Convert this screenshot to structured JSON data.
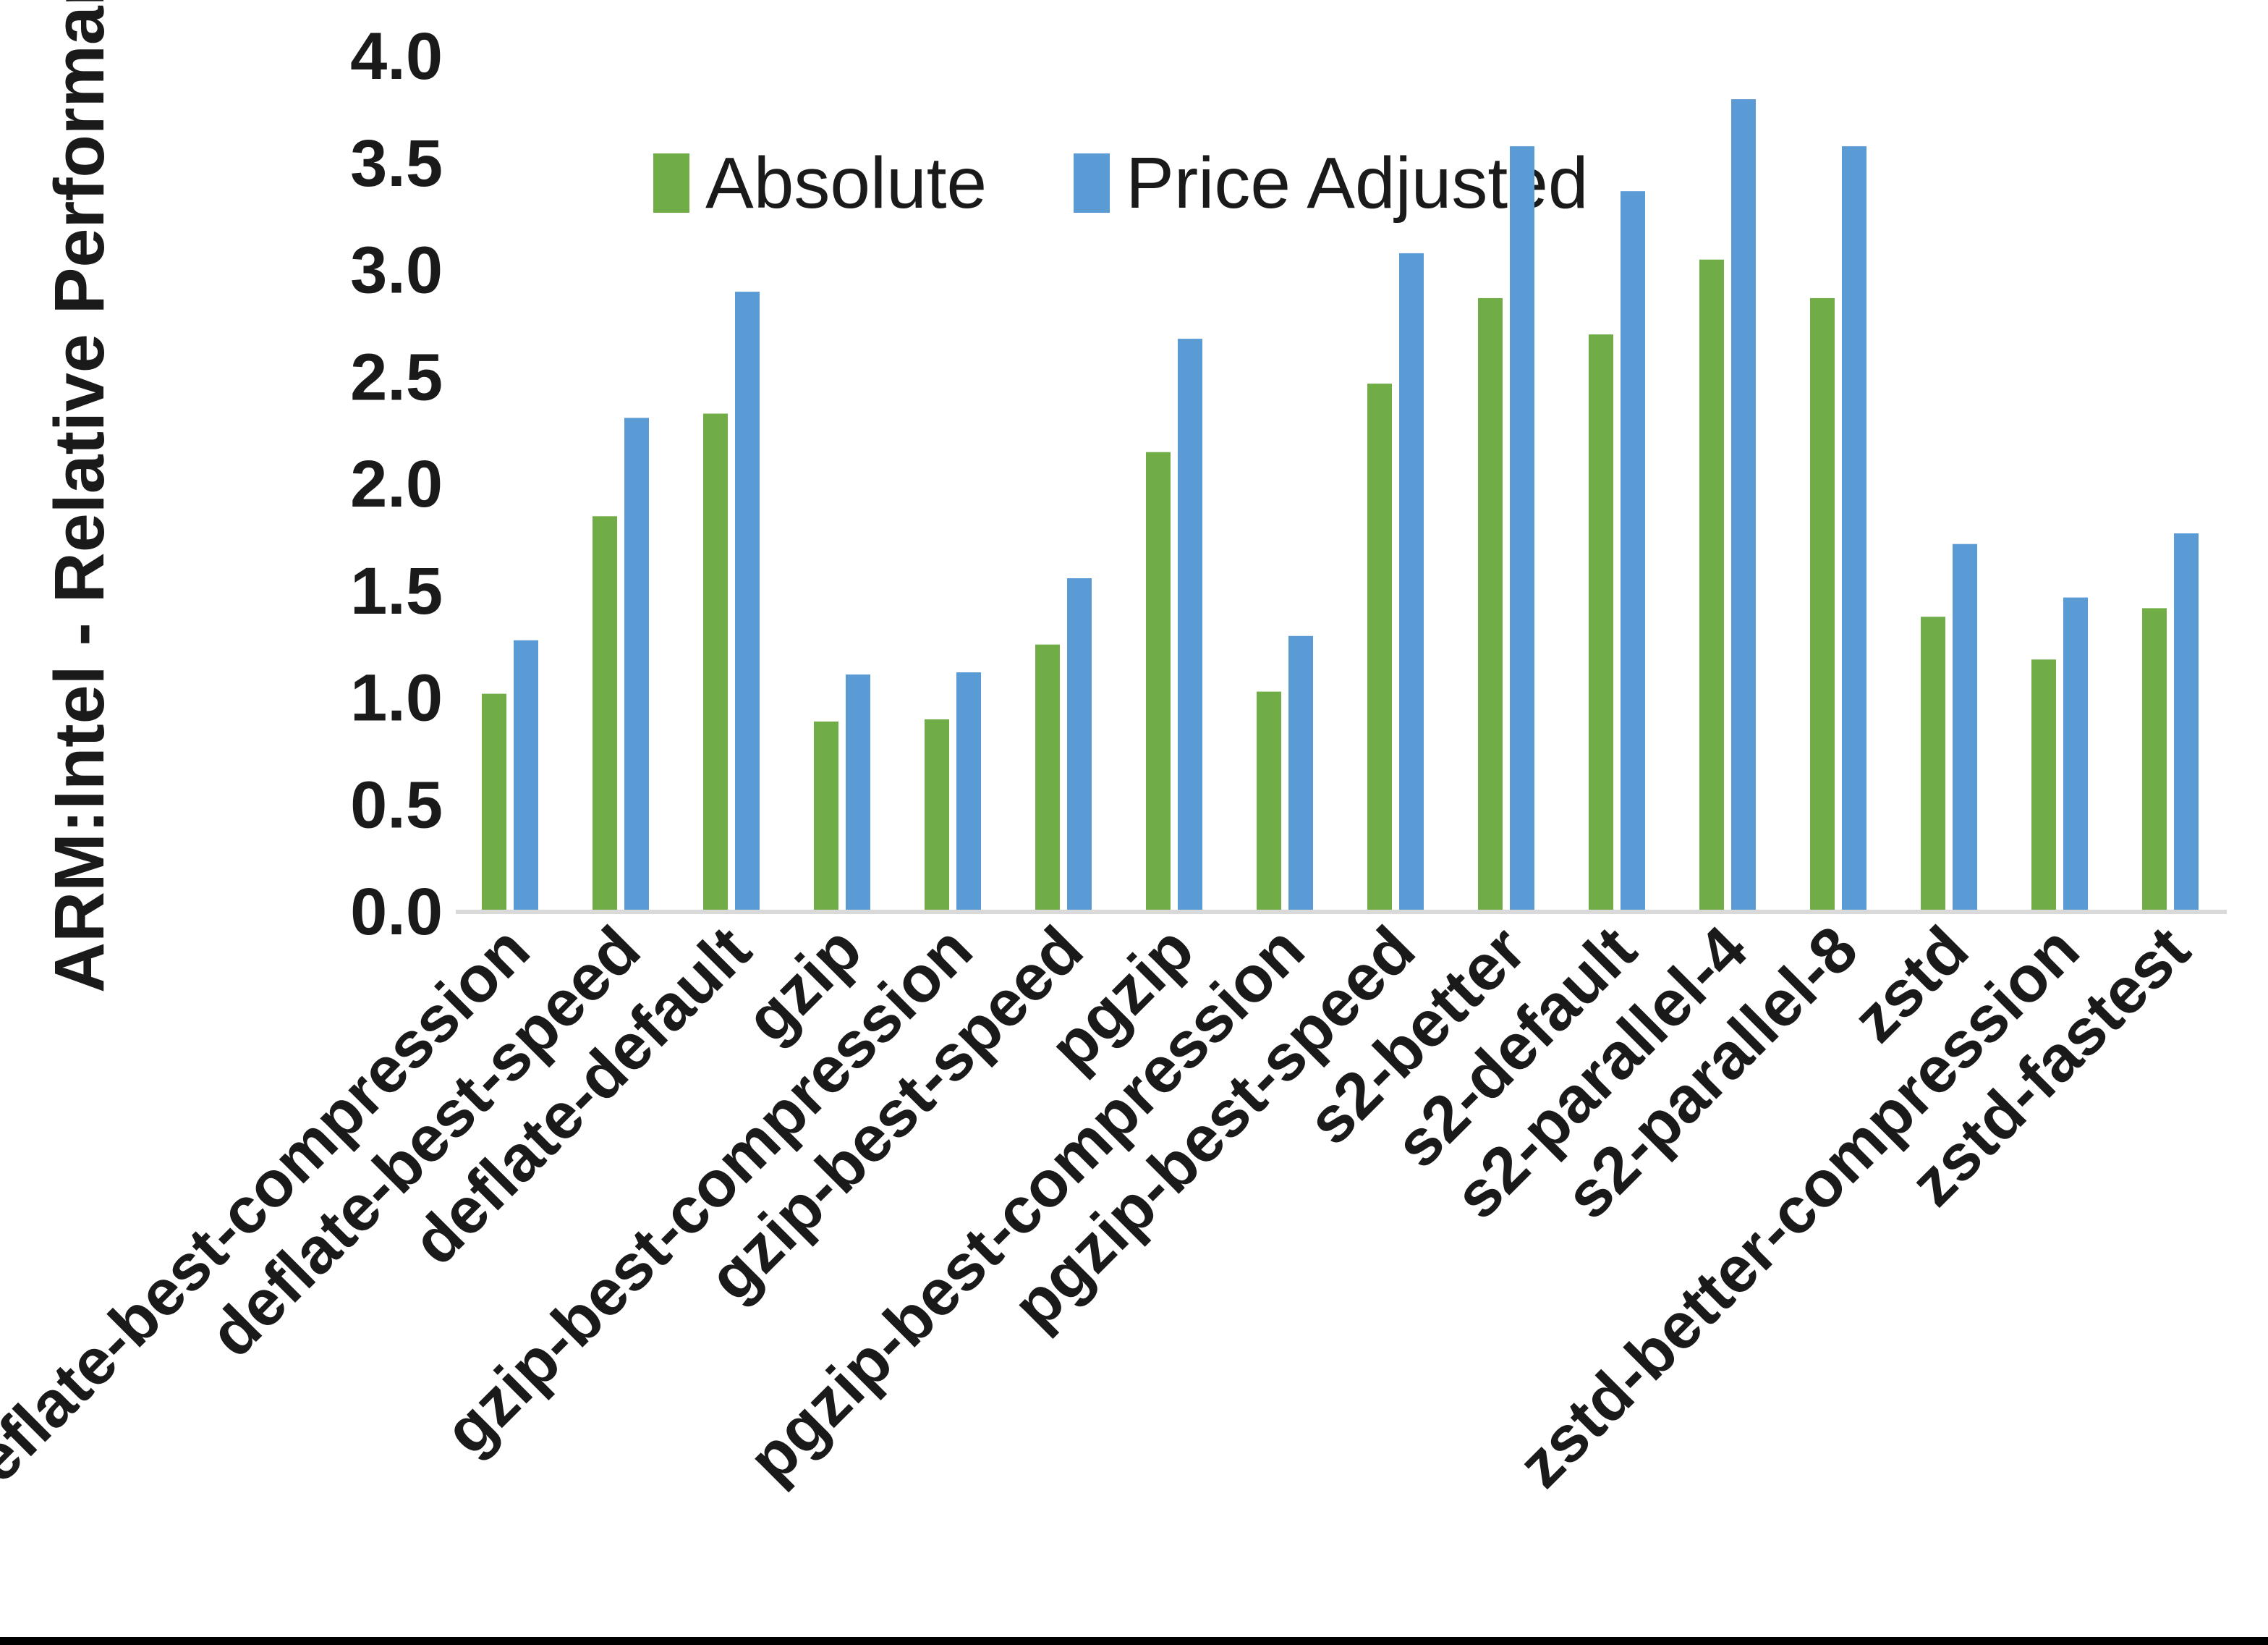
{
  "chart_data": {
    "type": "bar",
    "title": "",
    "ylabel": "ARM:Intel - Relative Performance",
    "xlabel": "",
    "ylim": [
      0.0,
      4.0
    ],
    "ytick_step": 0.5,
    "ytick_labels": [
      "0.0",
      "0.5",
      "1.0",
      "1.5",
      "2.0",
      "2.5",
      "3.0",
      "3.5",
      "4.0"
    ],
    "grid": false,
    "legend_position": "top-center-inside",
    "categories": [
      "deflate-best-compression",
      "deflate-best-speed",
      "deflate-default",
      "gzip",
      "gzip-best-compression",
      "gzip-best-speed",
      "pgzip",
      "pgzip-best-compression",
      "pgzip-best-speed",
      "s2-better",
      "s2-default",
      "s2-parallel-4",
      "s2-parallel-8",
      "zstd",
      "zstd-better-compression",
      "zstd-fastest"
    ],
    "series": [
      {
        "name": "Absolute",
        "color": "#70AD47",
        "values": [
          1.02,
          1.85,
          2.33,
          0.89,
          0.9,
          1.25,
          2.15,
          1.03,
          2.47,
          2.87,
          2.7,
          3.05,
          2.87,
          1.38,
          1.18,
          1.42
        ]
      },
      {
        "name": "Price Adjusted",
        "color": "#5B9BD5",
        "values": [
          1.27,
          2.31,
          2.9,
          1.11,
          1.12,
          1.56,
          2.68,
          1.29,
          3.08,
          3.58,
          3.37,
          3.8,
          3.58,
          1.72,
          1.47,
          1.77
        ]
      }
    ],
    "axis_line_color": "#D9D9D9",
    "text_color": "#1A1A1A"
  }
}
